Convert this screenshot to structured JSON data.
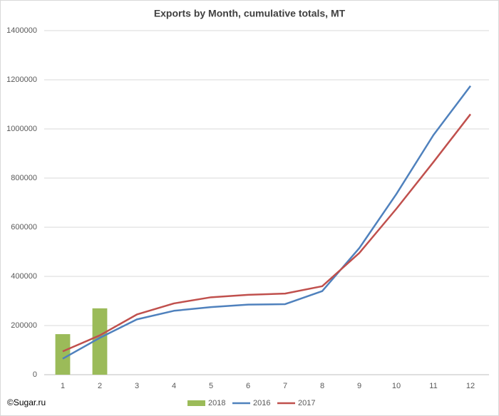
{
  "chart_data": {
    "type": "combo",
    "title": "Exports by Month, cumulative totals, MT",
    "annotation": "©Sugar.ru",
    "categories": [
      "1",
      "2",
      "3",
      "4",
      "5",
      "6",
      "7",
      "8",
      "9",
      "10",
      "11",
      "12"
    ],
    "series": [
      {
        "name": "2018",
        "type": "bar",
        "color": "#9bbb59",
        "values": [
          165000,
          270000,
          null,
          null,
          null,
          null,
          null,
          null,
          null,
          null,
          null,
          null
        ]
      },
      {
        "name": "2016",
        "type": "line",
        "color": "#4f81bd",
        "values": [
          65000,
          150000,
          225000,
          260000,
          275000,
          285000,
          287000,
          340000,
          515000,
          735000,
          975000,
          1175000
        ]
      },
      {
        "name": "2017",
        "type": "line",
        "color": "#c0504d",
        "values": [
          95000,
          160000,
          245000,
          290000,
          315000,
          325000,
          330000,
          360000,
          495000,
          675000,
          865000,
          1060000
        ]
      }
    ],
    "ylim": [
      0,
      1400000
    ],
    "yticks": [
      0,
      200000,
      400000,
      600000,
      800000,
      1000000,
      1200000,
      1400000
    ],
    "grid": true,
    "legend": "bottom"
  }
}
